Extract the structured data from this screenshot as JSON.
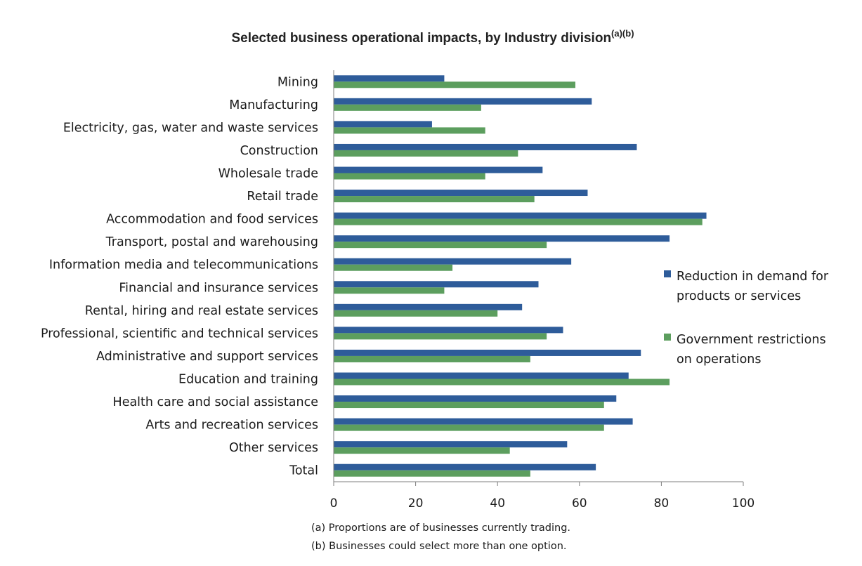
{
  "chart_data": {
    "type": "bar",
    "orientation": "horizontal",
    "title": "Selected business operational impacts, by Industry division",
    "title_superscript": "(a)(b)",
    "categories": [
      "Mining",
      "Manufacturing",
      "Electricity, gas, water and waste services",
      "Construction",
      "Wholesale trade",
      "Retail trade",
      "Accommodation and food services",
      "Transport, postal and warehousing",
      "Information media and telecommunications",
      "Financial and insurance services",
      "Rental, hiring and real estate services",
      "Professional, scientific and technical services",
      "Administrative and support services",
      "Education and training",
      "Health care and social assistance",
      "Arts and recreation services",
      "Other services",
      "Total"
    ],
    "series": [
      {
        "name": "Reduction in demand for products or services",
        "legend_lines": [
          "Reduction in demand for",
          "products or services"
        ],
        "color": "#2E5C9A",
        "values": [
          27,
          63,
          24,
          74,
          51,
          62,
          91,
          82,
          58,
          50,
          46,
          56,
          75,
          72,
          69,
          73,
          57,
          64
        ]
      },
      {
        "name": "Government restrictions on operations",
        "legend_lines": [
          "Government restrictions",
          "on operations"
        ],
        "color": "#5C9E5E",
        "values": [
          59,
          36,
          37,
          45,
          37,
          49,
          90,
          52,
          29,
          27,
          40,
          52,
          48,
          82,
          66,
          66,
          43,
          48
        ]
      }
    ],
    "xlim": [
      0,
      100
    ],
    "xticks": [
      0,
      20,
      40,
      60,
      80,
      100
    ],
    "xlabel": "",
    "ylabel": "",
    "grid": false,
    "legend_position": "right"
  },
  "notes": [
    "(a) Proportions are of businesses currently trading.",
    "(b) Businesses could select more than one option."
  ]
}
